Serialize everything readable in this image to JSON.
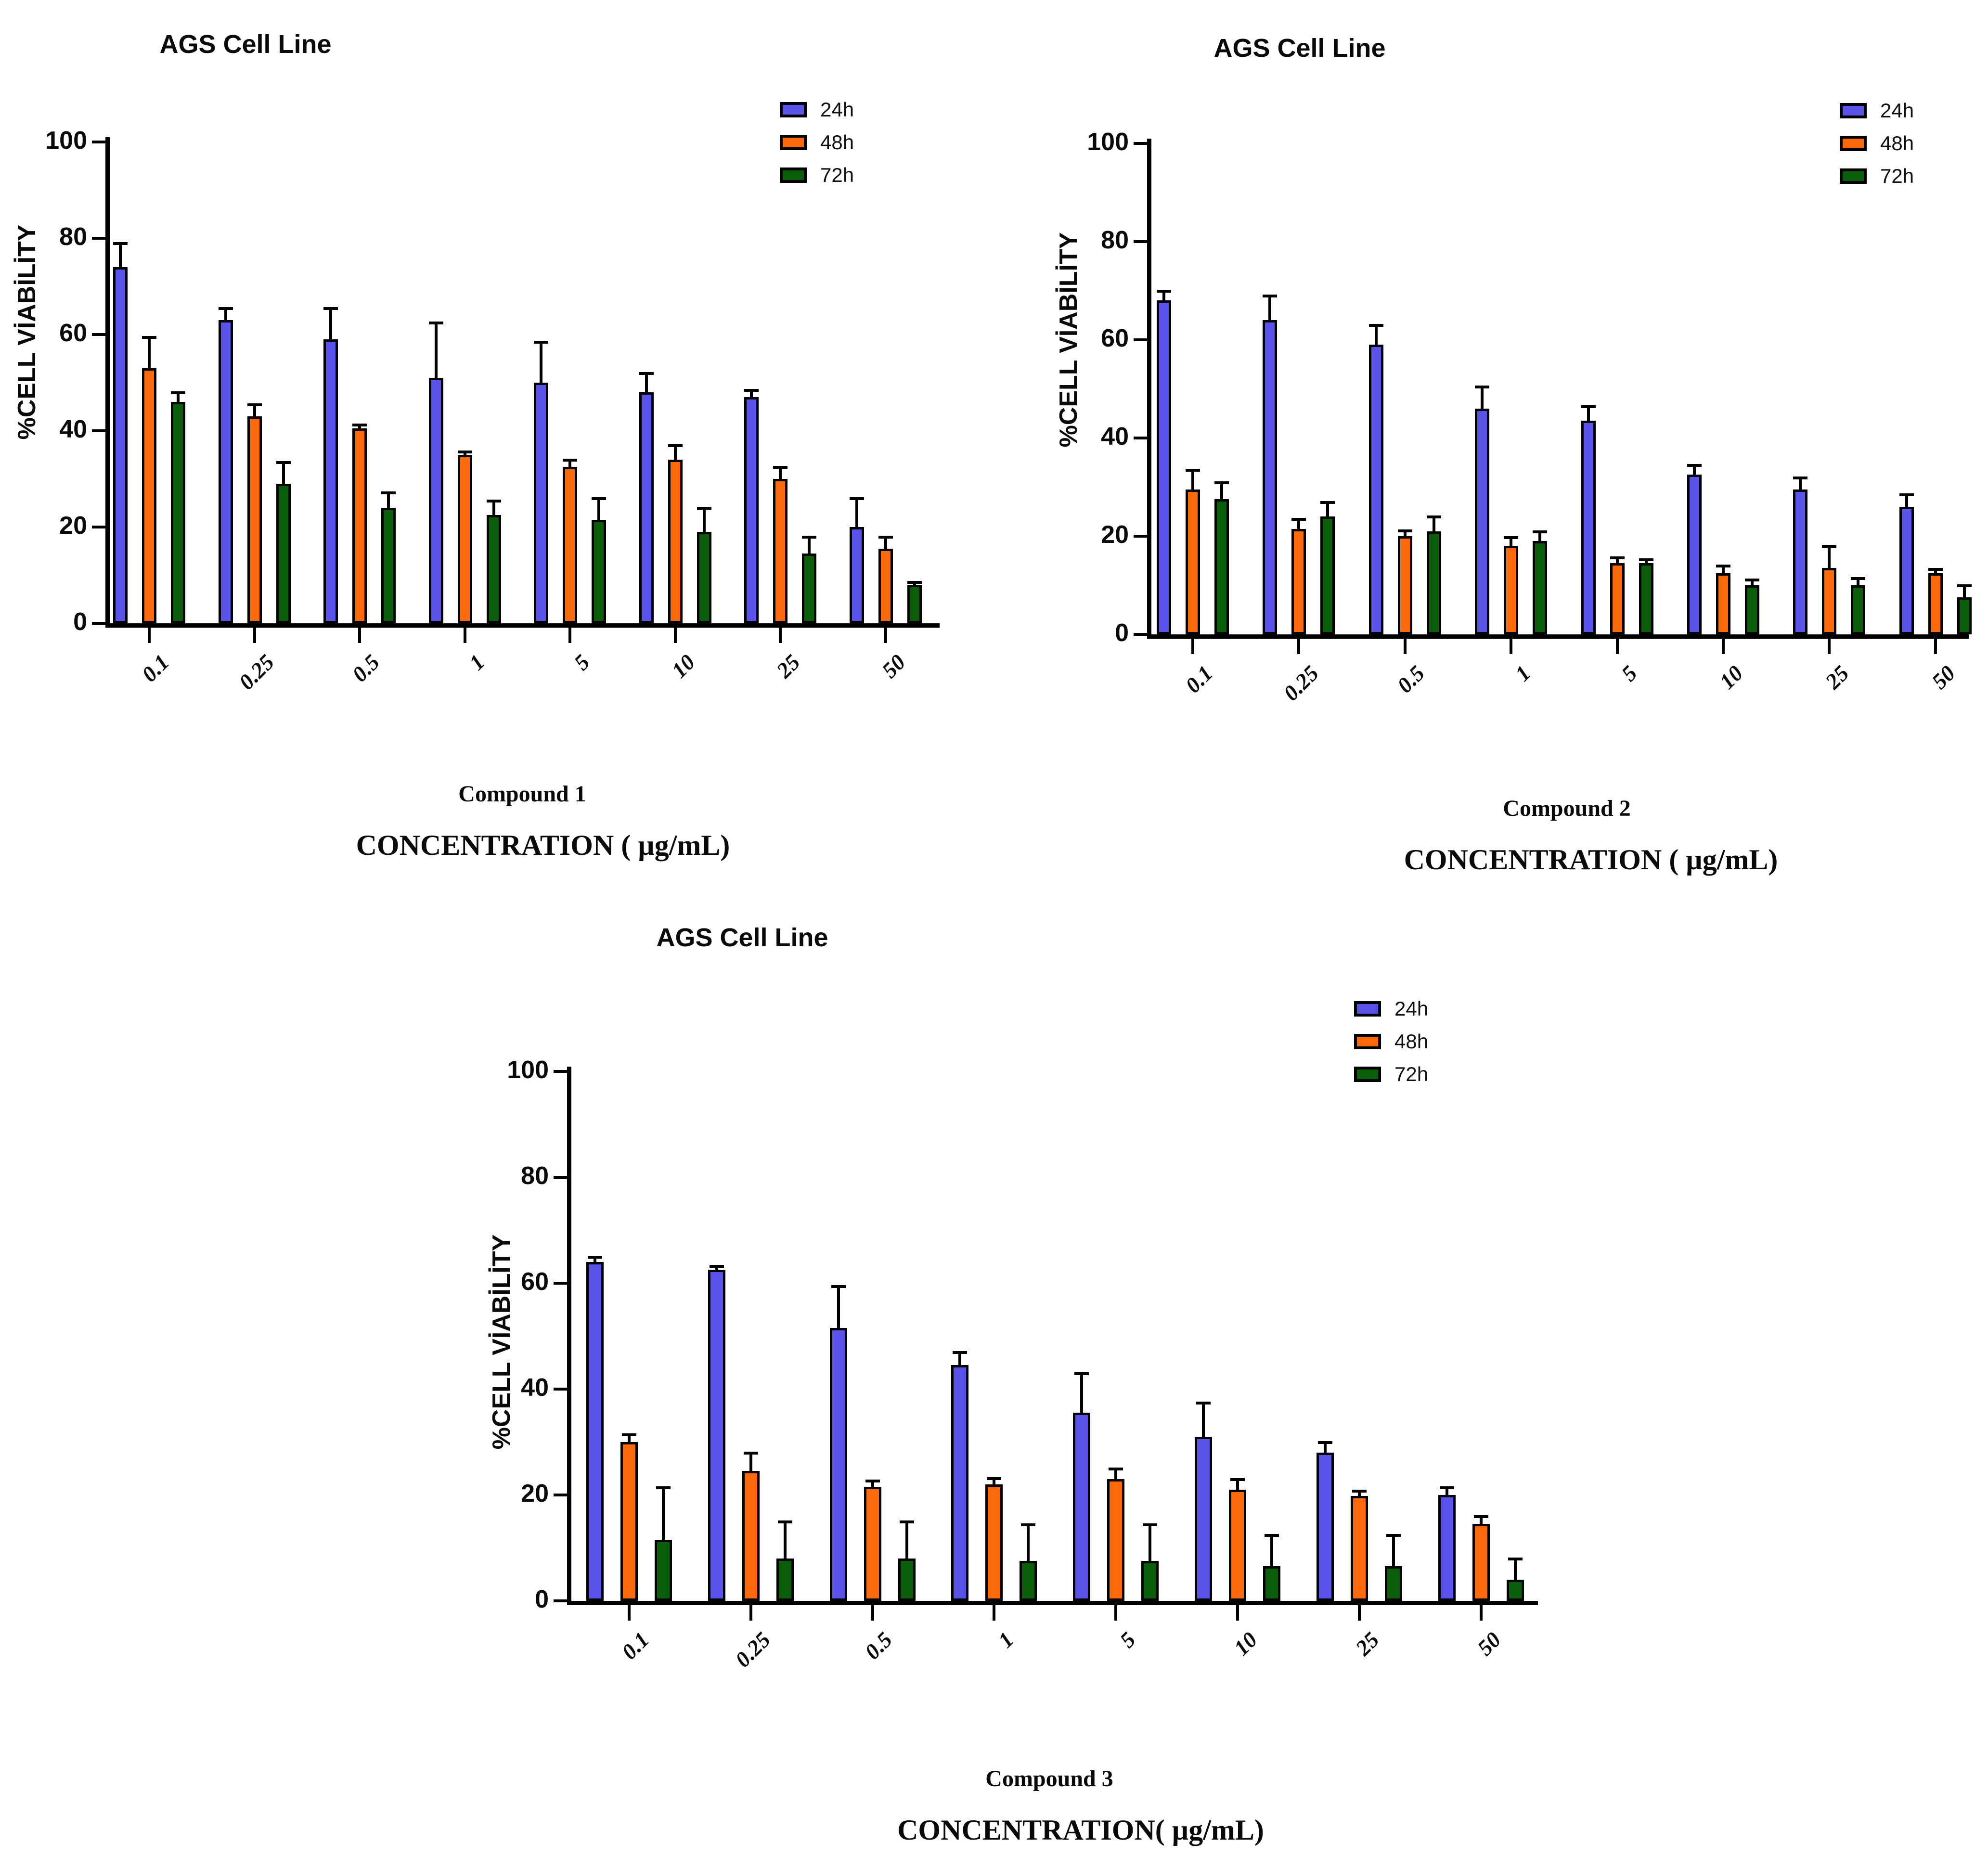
{
  "page": {
    "background": "#ffffff"
  },
  "chart_data": [
    {
      "type": "bar",
      "id": "compound-1",
      "title": "AGS Cell Line",
      "y_axis_label": "%CELL VİABİLİTY",
      "x_axis_label": "CONCENTRATION ( µg/mL)",
      "compound_label": "Compound 1",
      "legend_position": "top-right",
      "grid": false,
      "ylim": [
        0,
        100
      ],
      "y_ticks": [
        0,
        20,
        40,
        60,
        80,
        100
      ],
      "categories": [
        "0.1",
        "0.25",
        "0.5",
        "1",
        "5",
        "10",
        "25",
        "50"
      ],
      "series": [
        {
          "name": "24h",
          "color": "#5a53ea",
          "values": [
            74,
            63,
            59,
            51,
            50,
            48,
            47,
            20
          ],
          "errors": [
            5,
            2.5,
            6.5,
            11.5,
            8.5,
            4,
            1.5,
            6
          ]
        },
        {
          "name": "48h",
          "color": "#fa6a0b",
          "values": [
            53,
            43,
            40.5,
            35,
            32.5,
            34,
            30,
            15.5
          ],
          "errors": [
            6.5,
            2.5,
            0.8,
            0.7,
            1.5,
            3,
            2.5,
            2.5
          ]
        },
        {
          "name": "72h",
          "color": "#0a5e0a",
          "values": [
            46,
            29,
            24,
            22.5,
            21.5,
            19,
            14.5,
            8
          ],
          "errors": [
            2,
            4.5,
            3.2,
            3,
            4.5,
            5,
            3.5,
            0.6
          ]
        }
      ]
    },
    {
      "type": "bar",
      "id": "compound-2",
      "title": "AGS Cell Line",
      "y_axis_label": "%CELL VİABİLİTY",
      "x_axis_label": "CONCENTRATION ( µg/mL)",
      "compound_label": "Compound 2",
      "legend_position": "top-right",
      "grid": false,
      "ylim": [
        0,
        100
      ],
      "y_ticks": [
        0,
        20,
        40,
        60,
        80,
        100
      ],
      "categories": [
        "0.1",
        "0.25",
        "0.5",
        "1",
        "5",
        "10",
        "25",
        "50"
      ],
      "series": [
        {
          "name": "24h",
          "color": "#5a53ea",
          "values": [
            68,
            64,
            59,
            46,
            43.5,
            32.5,
            29.5,
            26
          ],
          "errors": [
            2,
            5,
            4,
            4.5,
            3,
            2,
            2.5,
            2.5
          ]
        },
        {
          "name": "48h",
          "color": "#fa6a0b",
          "values": [
            29.5,
            21.5,
            20,
            18,
            14.5,
            12.5,
            13.5,
            12.5
          ],
          "errors": [
            4,
            2,
            1.2,
            1.8,
            1.2,
            1.5,
            4.5,
            0.8
          ]
        },
        {
          "name": "72h",
          "color": "#0a5e0a",
          "values": [
            27.5,
            24,
            21,
            19,
            14.5,
            10,
            10,
            7.5
          ],
          "errors": [
            3.5,
            3,
            3,
            2,
            0.8,
            1.2,
            1.5,
            2.5
          ]
        }
      ]
    },
    {
      "type": "bar",
      "id": "compound-3",
      "title": "AGS Cell Line",
      "y_axis_label": "%CELL VİABİLİTY",
      "x_axis_label": "CONCENTRATION( µg/mL)",
      "compound_label": "Compound 3",
      "legend_position": "top-right",
      "grid": false,
      "ylim": [
        0,
        100
      ],
      "y_ticks": [
        0,
        20,
        40,
        60,
        80,
        100
      ],
      "categories": [
        "0.1",
        "0.25",
        "0.5",
        "1",
        "5",
        "10",
        "25",
        "50"
      ],
      "series": [
        {
          "name": "24h",
          "color": "#5a53ea",
          "values": [
            64,
            62.5,
            51.5,
            44.5,
            35.5,
            31,
            28,
            20
          ],
          "errors": [
            1,
            0.8,
            8,
            2.5,
            7.5,
            6.5,
            2,
            1.5
          ]
        },
        {
          "name": "48h",
          "color": "#fa6a0b",
          "values": [
            30,
            24.5,
            21.5,
            22,
            23,
            21,
            19.8,
            14.5
          ],
          "errors": [
            1.5,
            3.5,
            1.2,
            1.2,
            2,
            2,
            1,
            1.5
          ]
        },
        {
          "name": "72h",
          "color": "#0a5e0a",
          "values": [
            11.5,
            8,
            8,
            7.5,
            7.5,
            6.5,
            6.5,
            4
          ],
          "errors": [
            10,
            7,
            7,
            7,
            7,
            6,
            6,
            4
          ]
        }
      ]
    }
  ]
}
